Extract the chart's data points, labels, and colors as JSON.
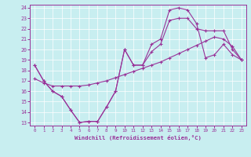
{
  "xlabel": "Windchill (Refroidissement éolien,°C)",
  "bg_color": "#c8eef0",
  "line_color": "#993399",
  "xlim": [
    -0.5,
    23.5
  ],
  "ylim": [
    12.7,
    24.3
  ],
  "xticks": [
    0,
    1,
    2,
    3,
    4,
    5,
    6,
    7,
    8,
    9,
    10,
    11,
    12,
    13,
    14,
    15,
    16,
    17,
    18,
    19,
    20,
    21,
    22,
    23
  ],
  "yticks": [
    13,
    14,
    15,
    16,
    17,
    18,
    19,
    20,
    21,
    22,
    23,
    24
  ],
  "line1_x": [
    0,
    1,
    2,
    3,
    4,
    5,
    6,
    7,
    8,
    9,
    10,
    11,
    12,
    13,
    14,
    15,
    16,
    17,
    18,
    19,
    20,
    21,
    22,
    23
  ],
  "line1_y": [
    18.5,
    17.0,
    16.0,
    15.5,
    14.2,
    13.0,
    13.1,
    13.1,
    14.5,
    16.0,
    20.0,
    18.5,
    18.5,
    20.5,
    21.0,
    23.8,
    24.0,
    23.8,
    22.5,
    19.2,
    19.5,
    20.5,
    19.5,
    19.0
  ],
  "line2_x": [
    0,
    1,
    2,
    3,
    4,
    5,
    6,
    7,
    8,
    9,
    10,
    11,
    12,
    13,
    14,
    15,
    16,
    17,
    18,
    19,
    20,
    21,
    22,
    23
  ],
  "line2_y": [
    17.2,
    16.8,
    16.5,
    16.5,
    16.5,
    16.5,
    16.6,
    16.8,
    17.0,
    17.3,
    17.6,
    17.9,
    18.2,
    18.5,
    18.8,
    19.2,
    19.6,
    20.0,
    20.4,
    20.8,
    21.2,
    21.0,
    20.3,
    19.0
  ],
  "line3_x": [
    0,
    1,
    2,
    3,
    4,
    5,
    6,
    7,
    8,
    9,
    10,
    11,
    12,
    13,
    14,
    15,
    16,
    17,
    18,
    19,
    20,
    21,
    22,
    23
  ],
  "line3_y": [
    18.5,
    17.0,
    16.0,
    15.5,
    14.2,
    13.0,
    13.1,
    13.1,
    14.5,
    16.0,
    20.0,
    18.5,
    18.5,
    19.8,
    20.5,
    22.8,
    23.0,
    23.0,
    22.0,
    21.8,
    21.8,
    21.8,
    20.0,
    19.0
  ]
}
